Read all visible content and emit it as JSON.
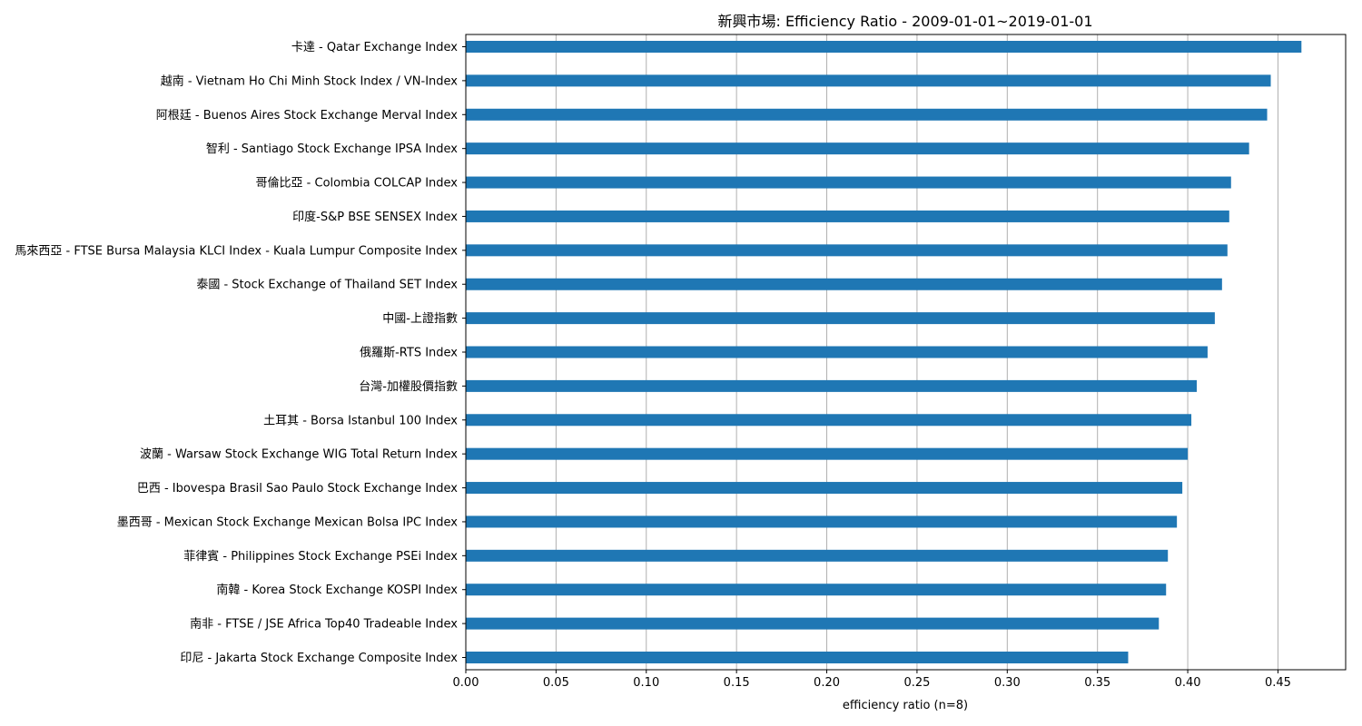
{
  "chart_data": {
    "type": "bar",
    "orientation": "horizontal",
    "title": "新興市場: Efficiency Ratio - 2009-01-01~2019-01-01",
    "xlabel": "efficiency ratio (n=8)",
    "ylabel": "",
    "xlim": [
      0,
      0.4875
    ],
    "xticks": [
      "0.00",
      "0.05",
      "0.10",
      "0.15",
      "0.20",
      "0.25",
      "0.30",
      "0.35",
      "0.40",
      "0.45"
    ],
    "grid": "vertical",
    "bar_color": "#1f77b4",
    "categories": [
      "卡達 - Qatar Exchange Index",
      "越南 - Vietnam Ho Chi Minh Stock Index  /  VN-Index",
      "阿根廷 - Buenos Aires Stock Exchange Merval Index",
      "智利 - Santiago Stock Exchange IPSA Index",
      "哥倫比亞 - Colombia COLCAP Index",
      "印度-S&P BSE SENSEX Index",
      "馬來西亞 - FTSE Bursa Malaysia KLCI Index - Kuala Lumpur Composite Index",
      "泰國 - Stock Exchange of Thailand SET Index",
      "中國-上證指數",
      "俄羅斯-RTS Index",
      "台灣-加權股價指數",
      "土耳其 - Borsa Istanbul 100 Index",
      "波蘭 - Warsaw Stock Exchange WIG Total Return Index",
      "巴西 - Ibovespa Brasil Sao Paulo Stock Exchange Index",
      "墨西哥 - Mexican Stock Exchange Mexican Bolsa IPC Index",
      "菲律賓 - Philippines Stock Exchange PSEi Index",
      "南韓 - Korea Stock Exchange KOSPI Index",
      "南非 - FTSE / JSE Africa Top40 Tradeable Index",
      "印尼 - Jakarta Stock Exchange Composite Index"
    ],
    "values": [
      0.463,
      0.446,
      0.444,
      0.434,
      0.424,
      0.423,
      0.422,
      0.419,
      0.415,
      0.411,
      0.405,
      0.402,
      0.4,
      0.397,
      0.394,
      0.389,
      0.388,
      0.384,
      0.367
    ]
  }
}
